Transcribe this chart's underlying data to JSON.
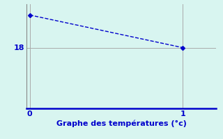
{
  "x": [
    0,
    1
  ],
  "y": [
    19.5,
    18.0
  ],
  "line_color": "#0000cc",
  "marker_color": "#0000cc",
  "bg_color": "#d8f5f0",
  "grid_color": "#aaaaaa",
  "bottom_spine_color": "#0000cc",
  "left_spine_color": "#888888",
  "xlabel": "Graphe des températures (°c)",
  "xlabel_color": "#0000cc",
  "xlabel_fontsize": 8,
  "tick_color": "#0000cc",
  "tick_fontsize": 8,
  "xlim": [
    -0.02,
    1.22
  ],
  "ylim": [
    15.2,
    20.0
  ],
  "yticks": [
    18
  ],
  "xticks": [
    0,
    1
  ],
  "line_width": 1.0,
  "marker_size": 3,
  "linestyle": "--"
}
